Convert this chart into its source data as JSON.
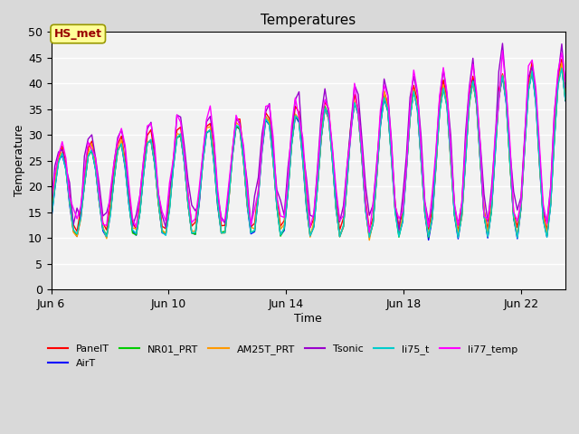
{
  "title": "Temperatures",
  "xlabel": "Time",
  "ylabel": "Temperature",
  "ylim": [
    0,
    50
  ],
  "yticks": [
    0,
    5,
    10,
    15,
    20,
    25,
    30,
    35,
    40,
    45,
    50
  ],
  "xtick_labels": [
    "Jun 6",
    "Jun 10",
    "Jun 14",
    "Jun 18",
    "Jun 22"
  ],
  "xtick_positions": [
    6,
    10,
    14,
    18,
    22
  ],
  "xmin": 6,
  "xmax": 23.5,
  "bg_color": "#e8e8e8",
  "plot_bg_color": "#f0f0f0",
  "series_colors": {
    "PanelT": "#ff0000",
    "AirT": "#0000ff",
    "NR01_PRT": "#00cc00",
    "AM25T_PRT": "#ff9900",
    "Tsonic": "#9900cc",
    "li75_t": "#00cccc",
    "li77_temp": "#ff00ff"
  },
  "annotation_text": "HS_met",
  "annotation_color": "#990000",
  "annotation_bg": "#ffff99",
  "annotation_border": "#999900"
}
